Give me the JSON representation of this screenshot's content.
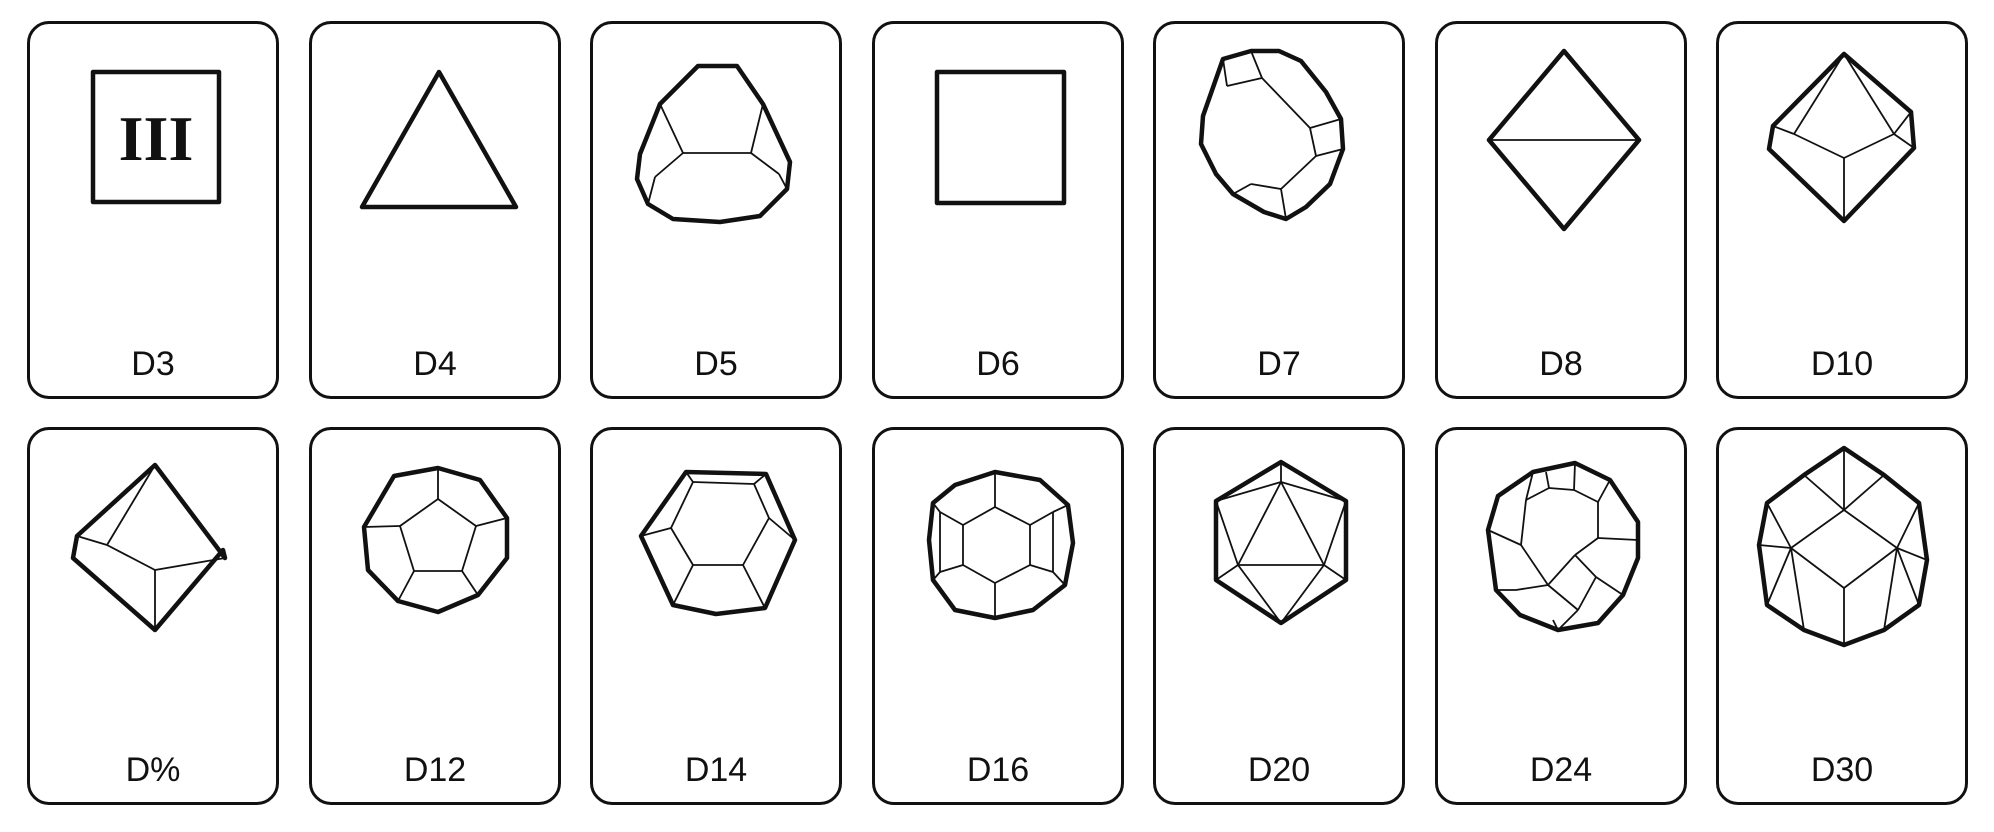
{
  "dice": [
    {
      "label": "D3",
      "roman": "III"
    },
    {
      "label": "D4"
    },
    {
      "label": "D5"
    },
    {
      "label": "D6"
    },
    {
      "label": "D7"
    },
    {
      "label": "D8"
    },
    {
      "label": "D10"
    },
    {
      "label": "D%"
    },
    {
      "label": "D12"
    },
    {
      "label": "D14"
    },
    {
      "label": "D16"
    },
    {
      "label": "D20"
    },
    {
      "label": "D24"
    },
    {
      "label": "D30"
    }
  ],
  "colors": {
    "stroke": "#111111",
    "background": "#ffffff"
  }
}
